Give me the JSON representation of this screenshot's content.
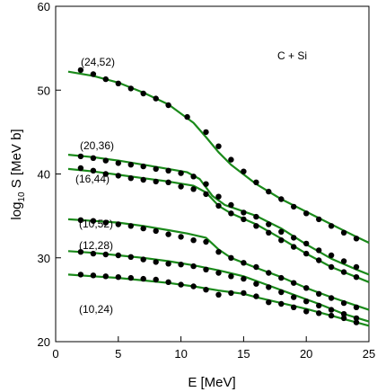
{
  "chart_data": {
    "type": "line",
    "title": "",
    "annotation": "C + Si",
    "xlabel": "E [MeV]",
    "ylabel_main": "log",
    "ylabel_sub": "10",
    "ylabel_rest": " S [MeV b]",
    "xlim": [
      0,
      25
    ],
    "ylim": [
      20,
      60
    ],
    "xticks": [
      0,
      5,
      10,
      15,
      20,
      25
    ],
    "yticks": [
      20,
      30,
      40,
      50,
      60
    ],
    "grid": false,
    "line_color": "#1a8a1a",
    "marker_color": "#000000",
    "series": [
      {
        "name": "(24,52)",
        "curve": [
          [
            1,
            52.2
          ],
          [
            3,
            51.7
          ],
          [
            5,
            50.9
          ],
          [
            7,
            49.7
          ],
          [
            9,
            48.3
          ],
          [
            10,
            47.2
          ],
          [
            11,
            46.1
          ],
          [
            12,
            44.4
          ],
          [
            13,
            42.6
          ],
          [
            14,
            41.1
          ],
          [
            16,
            38.8
          ],
          [
            18,
            37.0
          ],
          [
            20,
            35.5
          ],
          [
            22,
            34.0
          ],
          [
            24,
            32.5
          ],
          [
            25,
            31.8
          ]
        ],
        "points": [
          [
            2,
            52.4
          ],
          [
            3,
            51.9
          ],
          [
            4,
            51.3
          ],
          [
            5,
            50.8
          ],
          [
            6,
            50.2
          ],
          [
            7,
            49.6
          ],
          [
            8,
            49.0
          ],
          [
            9,
            48.2
          ],
          [
            10.5,
            46.8
          ],
          [
            12,
            45.0
          ],
          [
            13,
            43.3
          ],
          [
            14,
            41.7
          ],
          [
            15,
            40.3
          ],
          [
            16,
            39.0
          ],
          [
            17,
            37.9
          ],
          [
            18,
            37.0
          ],
          [
            19,
            36.1
          ],
          [
            20,
            35.3
          ],
          [
            21,
            34.6
          ],
          [
            22,
            33.8
          ],
          [
            23,
            33.0
          ],
          [
            24,
            32.3
          ]
        ]
      },
      {
        "name": "(20,36)",
        "curve": [
          [
            1,
            42.3
          ],
          [
            3,
            42.0
          ],
          [
            5,
            41.6
          ],
          [
            7,
            41.1
          ],
          [
            9,
            40.6
          ],
          [
            10.5,
            40.2
          ],
          [
            11.5,
            39.4
          ],
          [
            12.5,
            37.4
          ],
          [
            13.5,
            36.3
          ],
          [
            16,
            35.0
          ],
          [
            18,
            33.5
          ],
          [
            20,
            31.6
          ],
          [
            22,
            29.9
          ],
          [
            24,
            28.6
          ],
          [
            25,
            28.0
          ]
        ],
        "points": [
          [
            2,
            42.1
          ],
          [
            3,
            41.9
          ],
          [
            4,
            41.6
          ],
          [
            5,
            41.3
          ],
          [
            6,
            41.1
          ],
          [
            7,
            40.9
          ],
          [
            8,
            40.6
          ],
          [
            9,
            40.4
          ],
          [
            10,
            40.1
          ],
          [
            11,
            39.7
          ],
          [
            12,
            38.8
          ],
          [
            13,
            37.3
          ],
          [
            14,
            36.3
          ],
          [
            15,
            35.4
          ],
          [
            16,
            34.9
          ],
          [
            17,
            34.0
          ],
          [
            18,
            33.1
          ],
          [
            19,
            32.4
          ],
          [
            20,
            31.7
          ],
          [
            21,
            30.9
          ],
          [
            22,
            30.3
          ],
          [
            23,
            29.6
          ],
          [
            24,
            28.9
          ]
        ]
      },
      {
        "name": "(16,44)",
        "curve": [
          [
            1,
            40.6
          ],
          [
            3,
            40.3
          ],
          [
            5,
            39.9
          ],
          [
            7,
            39.5
          ],
          [
            9,
            39.1
          ],
          [
            11,
            38.6
          ],
          [
            12,
            37.8
          ],
          [
            13,
            36.2
          ],
          [
            14,
            35.3
          ],
          [
            16,
            34.0
          ],
          [
            18,
            32.3
          ],
          [
            20,
            30.5
          ],
          [
            22,
            28.9
          ],
          [
            24,
            27.7
          ],
          [
            25,
            27.1
          ]
        ],
        "points": [
          [
            2,
            40.7
          ],
          [
            3,
            40.4
          ],
          [
            4,
            40.0
          ],
          [
            5,
            39.8
          ],
          [
            6,
            39.5
          ],
          [
            7,
            39.3
          ],
          [
            8,
            39.1
          ],
          [
            9,
            39.0
          ],
          [
            10,
            38.5
          ],
          [
            11,
            38.2
          ],
          [
            12,
            37.6
          ],
          [
            13,
            36.2
          ],
          [
            14,
            35.3
          ],
          [
            15,
            34.6
          ],
          [
            16,
            33.8
          ],
          [
            17,
            33.0
          ],
          [
            18,
            32.1
          ],
          [
            19,
            31.3
          ],
          [
            20,
            30.5
          ],
          [
            21,
            29.7
          ],
          [
            22,
            28.9
          ],
          [
            23,
            28.3
          ],
          [
            24,
            27.7
          ]
        ]
      },
      {
        "name": "(10,52)",
        "curve": [
          [
            1,
            34.6
          ],
          [
            3,
            34.4
          ],
          [
            5,
            34.2
          ],
          [
            7,
            33.8
          ],
          [
            9,
            33.3
          ],
          [
            10.5,
            32.9
          ],
          [
            12,
            32.4
          ],
          [
            13,
            31.0
          ],
          [
            14,
            30.0
          ],
          [
            16,
            28.8
          ],
          [
            18,
            27.7
          ],
          [
            20,
            26.4
          ],
          [
            22,
            25.3
          ],
          [
            24,
            24.3
          ],
          [
            25,
            23.8
          ]
        ],
        "points": [
          [
            2,
            34.5
          ],
          [
            3,
            34.4
          ],
          [
            4,
            34.2
          ],
          [
            5,
            34.0
          ],
          [
            6,
            33.8
          ],
          [
            7,
            33.5
          ],
          [
            8,
            33.2
          ],
          [
            9,
            32.8
          ],
          [
            10,
            32.5
          ],
          [
            11,
            32.1
          ],
          [
            12,
            31.9
          ],
          [
            13,
            30.7
          ],
          [
            14,
            30.0
          ],
          [
            15,
            29.4
          ],
          [
            16,
            28.9
          ],
          [
            17,
            28.2
          ],
          [
            18,
            27.6
          ],
          [
            19,
            27.0
          ],
          [
            20,
            26.4
          ],
          [
            21,
            25.7
          ],
          [
            22,
            25.2
          ],
          [
            23,
            24.6
          ],
          [
            24,
            24.1
          ]
        ]
      },
      {
        "name": "(12,28)",
        "curve": [
          [
            1,
            30.8
          ],
          [
            3,
            30.6
          ],
          [
            5,
            30.3
          ],
          [
            7,
            30.0
          ],
          [
            9,
            29.6
          ],
          [
            11,
            29.1
          ],
          [
            13,
            28.5
          ],
          [
            15,
            27.8
          ],
          [
            17,
            26.7
          ],
          [
            19,
            25.6
          ],
          [
            21,
            24.5
          ],
          [
            23,
            23.3
          ],
          [
            25,
            22.4
          ]
        ],
        "points": [
          [
            2,
            30.7
          ],
          [
            3,
            30.5
          ],
          [
            4,
            30.4
          ],
          [
            5,
            30.3
          ],
          [
            6,
            30.1
          ],
          [
            7,
            29.8
          ],
          [
            8,
            29.5
          ],
          [
            9,
            29.3
          ],
          [
            10,
            29.2
          ],
          [
            11,
            29.0
          ],
          [
            12,
            28.6
          ],
          [
            13,
            28.2
          ],
          [
            14,
            27.8
          ],
          [
            15,
            27.5
          ],
          [
            16,
            26.9
          ],
          [
            17,
            26.5
          ],
          [
            18,
            25.9
          ],
          [
            19,
            25.3
          ],
          [
            20,
            24.8
          ],
          [
            21,
            24.3
          ],
          [
            22,
            23.8
          ],
          [
            23,
            23.3
          ],
          [
            24,
            22.8
          ]
        ]
      },
      {
        "name": "(10,24)",
        "curve": [
          [
            1,
            28.0
          ],
          [
            3,
            27.8
          ],
          [
            5,
            27.6
          ],
          [
            7,
            27.3
          ],
          [
            9,
            27.0
          ],
          [
            11,
            26.6
          ],
          [
            13,
            26.1
          ],
          [
            14,
            25.9
          ],
          [
            15,
            25.7
          ],
          [
            16,
            25.3
          ],
          [
            18,
            24.6
          ],
          [
            20,
            23.9
          ],
          [
            22,
            23.1
          ],
          [
            24,
            22.3
          ],
          [
            25,
            21.9
          ]
        ],
        "points": [
          [
            2,
            28.0
          ],
          [
            3,
            27.9
          ],
          [
            4,
            27.8
          ],
          [
            5,
            27.7
          ],
          [
            6,
            27.6
          ],
          [
            7,
            27.5
          ],
          [
            8,
            27.4
          ],
          [
            9,
            27.1
          ],
          [
            10,
            26.8
          ],
          [
            11,
            26.6
          ],
          [
            12,
            26.2
          ],
          [
            13,
            25.6
          ],
          [
            14,
            25.8
          ],
          [
            15,
            25.8
          ],
          [
            16,
            25.4
          ],
          [
            17,
            24.7
          ],
          [
            18,
            24.5
          ],
          [
            19,
            24.1
          ],
          [
            20,
            23.6
          ],
          [
            21,
            23.4
          ],
          [
            22,
            23.1
          ],
          [
            23,
            22.8
          ],
          [
            24,
            22.3
          ]
        ]
      }
    ]
  }
}
